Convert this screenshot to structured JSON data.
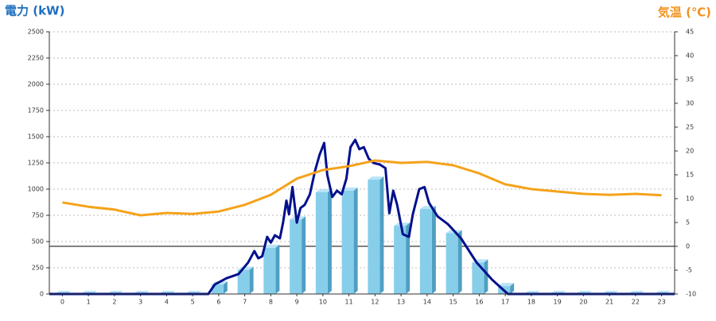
{
  "chart_data": {
    "type": "bar",
    "ylabel": "電力 (kW)",
    "y2label": "気温 (℃)",
    "ylabel_color": "#1f6fbf",
    "y2label_color": "#f0921e",
    "categories": [
      "0",
      "1",
      "2",
      "3",
      "4",
      "5",
      "6",
      "7",
      "8",
      "9",
      "10",
      "11",
      "12",
      "13",
      "14",
      "15",
      "16",
      "17",
      "18",
      "19",
      "20",
      "21",
      "22",
      "23"
    ],
    "ylim": [
      0,
      2500
    ],
    "yticks": [
      0,
      250,
      500,
      750,
      1000,
      1250,
      1500,
      1750,
      2000,
      2250,
      2500
    ],
    "y2lim": [
      -10,
      45
    ],
    "y2ticks": [
      -10,
      -5,
      0,
      5,
      10,
      15,
      20,
      25,
      30,
      35,
      40,
      45
    ],
    "grid": true,
    "series": [
      {
        "type": "bar",
        "color": "#87ceeb",
        "values": [
          0,
          0,
          0,
          0,
          0,
          0,
          90,
          230,
          440,
          710,
          970,
          985,
          1090,
          650,
          810,
          580,
          300,
          75,
          0,
          0,
          0,
          0,
          0,
          0
        ]
      },
      {
        "type": "line",
        "color": "#00108c",
        "x": [
          -0.5,
          5.6,
          5.85,
          6.3,
          6.76,
          7.13,
          7.37,
          7.52,
          7.67,
          7.86,
          8.0,
          8.16,
          8.35,
          8.47,
          8.6,
          8.7,
          8.83,
          9.0,
          9.14,
          9.3,
          9.5,
          9.7,
          9.87,
          10.05,
          10.17,
          10.36,
          10.54,
          10.72,
          10.9,
          11.06,
          11.24,
          11.4,
          11.57,
          11.76,
          11.94,
          12.18,
          12.4,
          12.55,
          12.7,
          12.85,
          13.07,
          13.3,
          13.45,
          13.7,
          13.9,
          14.07,
          14.4,
          14.8,
          15.3,
          15.9,
          16.5,
          17.1,
          23.5
        ],
        "values": [
          0,
          0,
          90,
          150,
          190,
          300,
          410,
          340,
          360,
          545,
          490,
          560,
          530,
          680,
          890,
          760,
          1020,
          680,
          820,
          850,
          950,
          1175,
          1325,
          1440,
          1135,
          925,
          985,
          950,
          1100,
          1400,
          1470,
          1380,
          1400,
          1290,
          1250,
          1235,
          1200,
          770,
          985,
          850,
          570,
          545,
          760,
          1000,
          1020,
          870,
          740,
          665,
          530,
          300,
          135,
          0,
          0
        ]
      },
      {
        "type": "line",
        "color": "#f5a21a",
        "axis": "y2",
        "values": [
          9.2,
          8.3,
          7.7,
          6.5,
          7,
          6.8,
          7.3,
          8.7,
          10.8,
          14.2,
          16,
          16.8,
          18,
          17.5,
          17.7,
          17,
          15.3,
          13,
          12,
          11.5,
          11,
          10.8,
          11,
          10.7
        ]
      }
    ]
  }
}
